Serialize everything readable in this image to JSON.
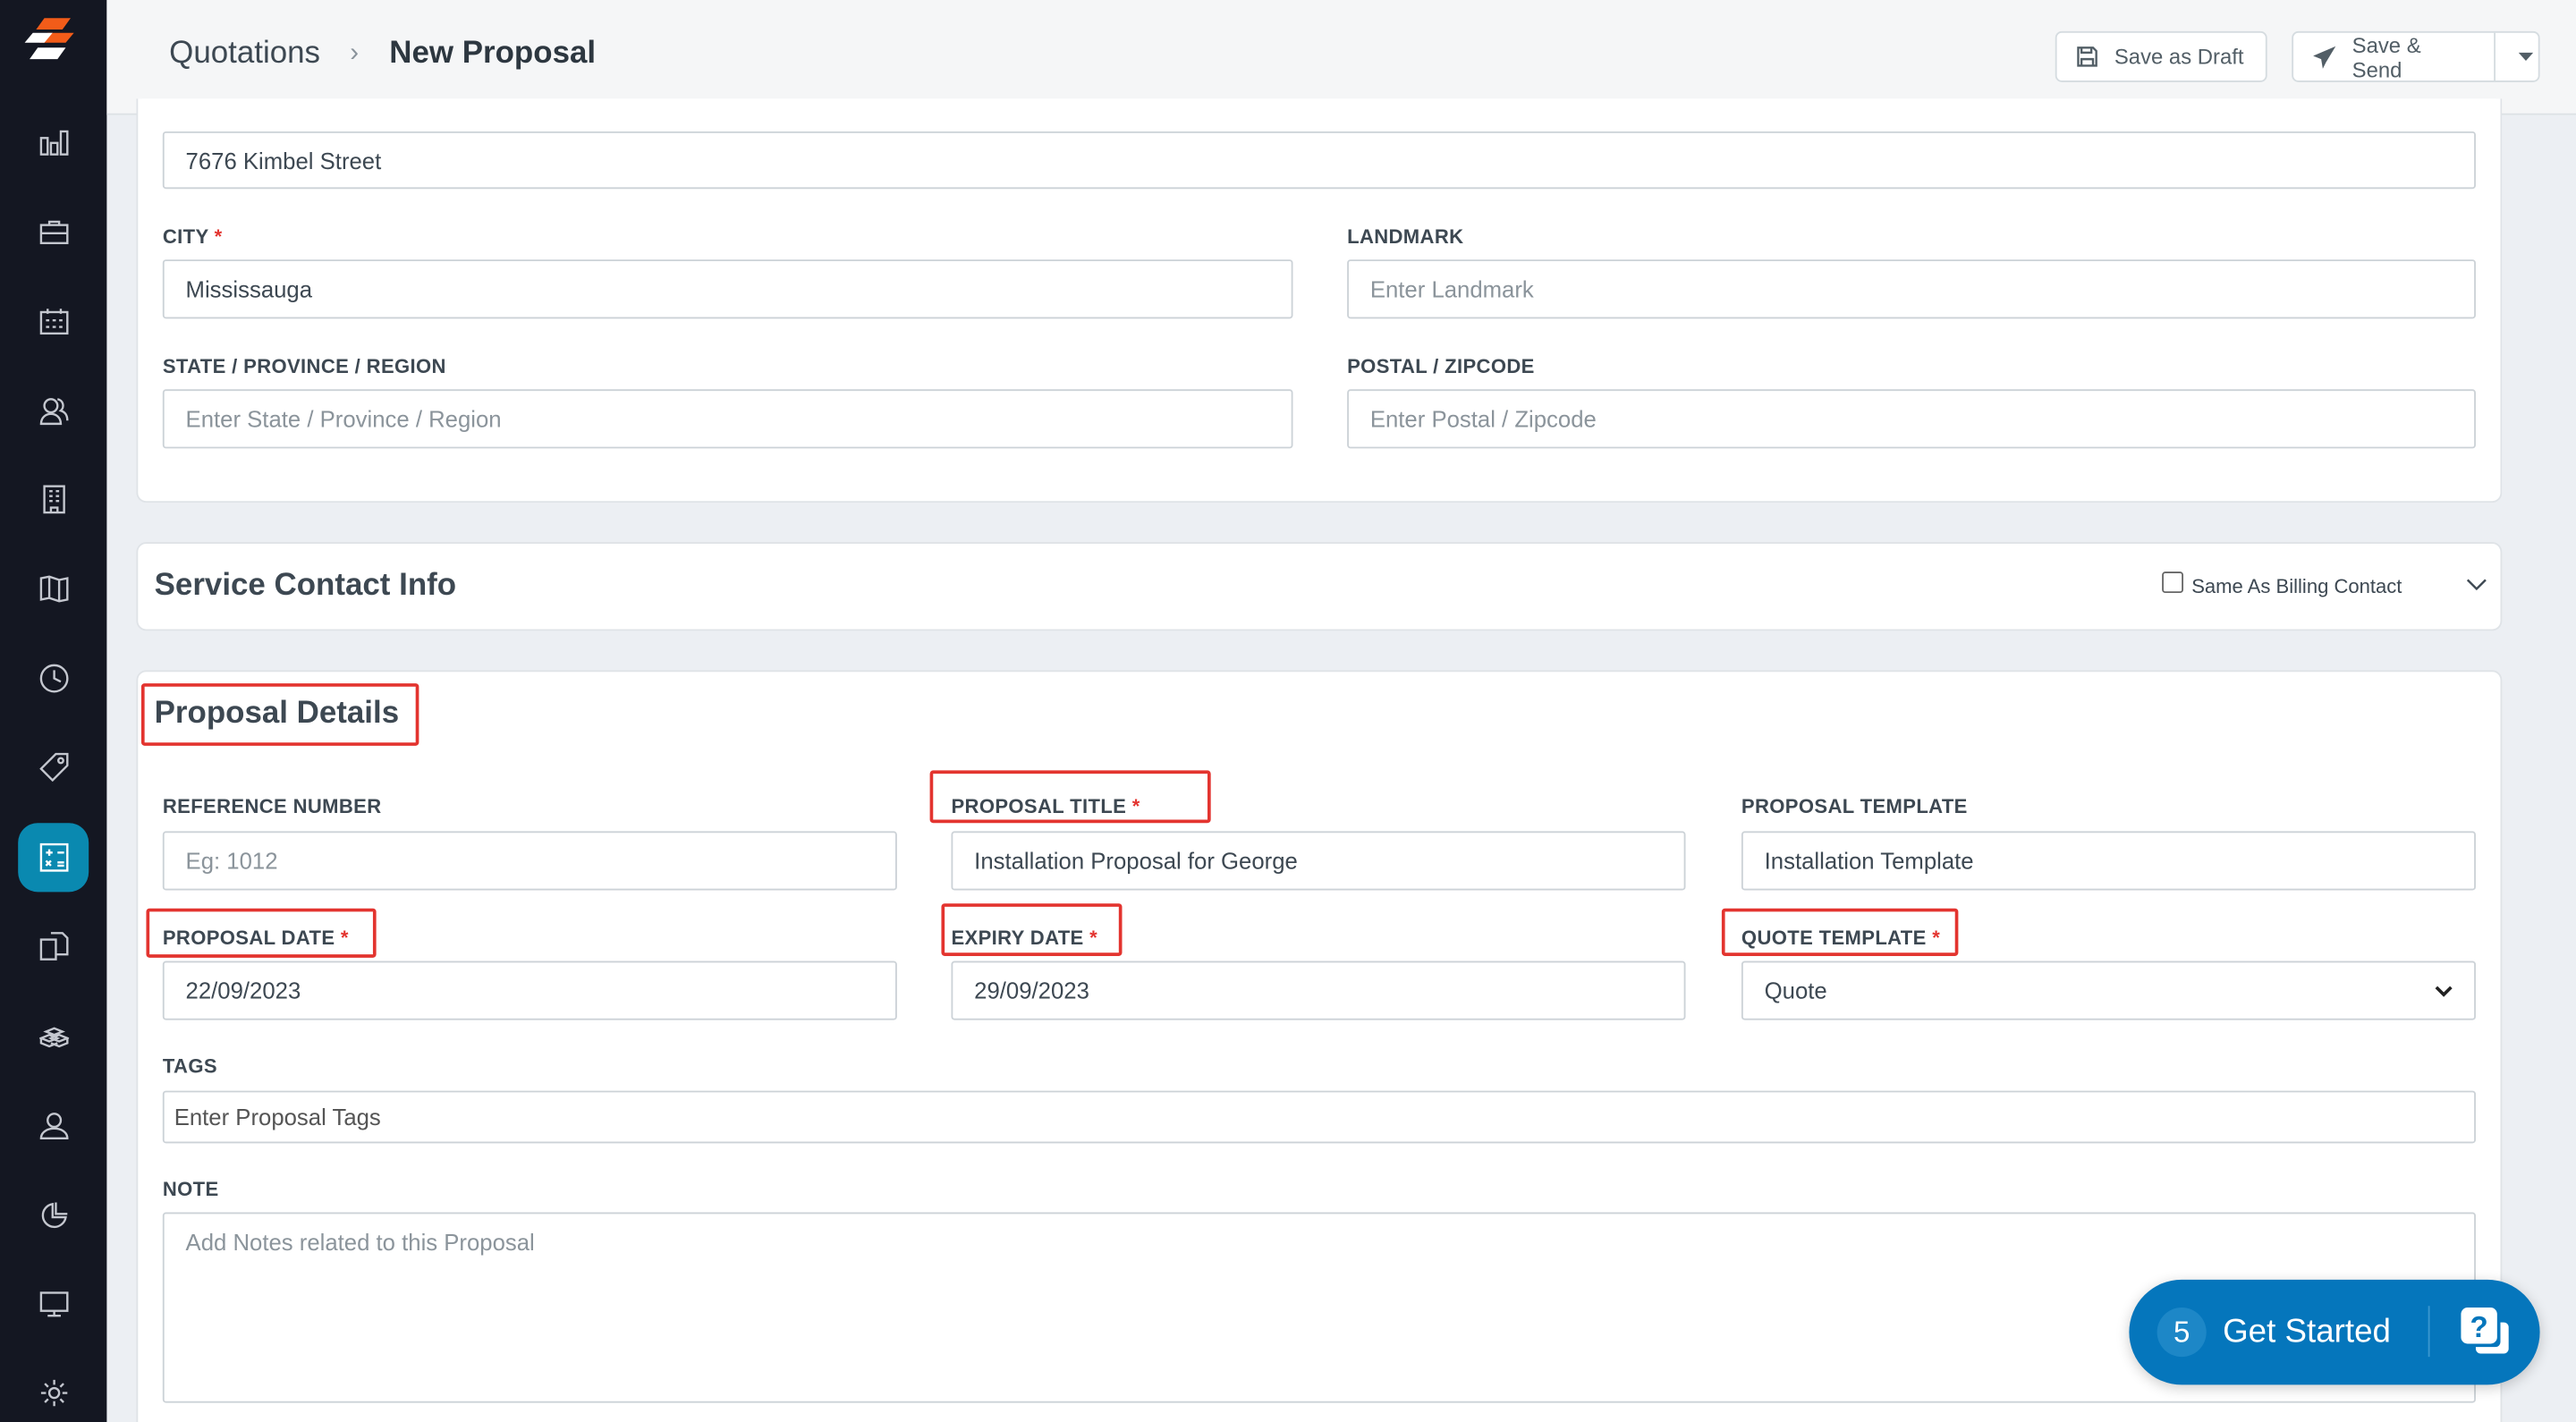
{
  "sidebar": {
    "items": [
      {
        "icon": "bar-chart-icon"
      },
      {
        "icon": "briefcase-icon"
      },
      {
        "icon": "calendar-icon"
      },
      {
        "icon": "users-icon"
      },
      {
        "icon": "building-icon"
      },
      {
        "icon": "map-icon"
      },
      {
        "icon": "clock-icon"
      },
      {
        "icon": "tag-icon"
      },
      {
        "icon": "calculator-icon",
        "active": true
      },
      {
        "icon": "documents-icon"
      },
      {
        "icon": "boxes-icon"
      },
      {
        "icon": "user-icon"
      },
      {
        "icon": "pie-chart-icon"
      },
      {
        "icon": "monitor-icon"
      },
      {
        "icon": "gear-icon"
      }
    ],
    "accent": "#0a89b0"
  },
  "header": {
    "breadcrumb": [
      "Quotations",
      "New Proposal"
    ],
    "save_draft": "Save as Draft",
    "save_send": "Save & Send"
  },
  "address": {
    "street_value": "7676 Kimbel Street",
    "city_label": "CITY",
    "city_value": "Mississauga",
    "landmark_label": "LANDMARK",
    "landmark_placeholder": "Enter Landmark",
    "state_label": "STATE / PROVINCE / REGION",
    "state_placeholder": "Enter State / Province / Region",
    "postal_label": "POSTAL / ZIPCODE",
    "postal_placeholder": "Enter Postal / Zipcode"
  },
  "service_contact": {
    "title": "Service Contact Info",
    "checkbox_label": "Same As Billing Contact",
    "checked": false
  },
  "proposal": {
    "title": "Proposal Details",
    "reference_label": "REFERENCE NUMBER",
    "reference_placeholder": "Eg: 1012",
    "title_label": "PROPOSAL TITLE",
    "title_value": "Installation Proposal for George",
    "template_label": "PROPOSAL TEMPLATE",
    "template_value": "Installation Template",
    "date_label": "PROPOSAL DATE",
    "date_value": "22/09/2023",
    "expiry_label": "EXPIRY DATE",
    "expiry_value": "29/09/2023",
    "quote_label": "QUOTE TEMPLATE",
    "quote_value": "Quote",
    "tags_label": "TAGS",
    "tags_placeholder": "Enter Proposal Tags",
    "note_label": "NOTE",
    "note_placeholder": "Add Notes related to this Proposal",
    "required_mark": "*"
  },
  "get_started": {
    "count": "5",
    "label": "Get Started",
    "color": "#0576bc"
  }
}
